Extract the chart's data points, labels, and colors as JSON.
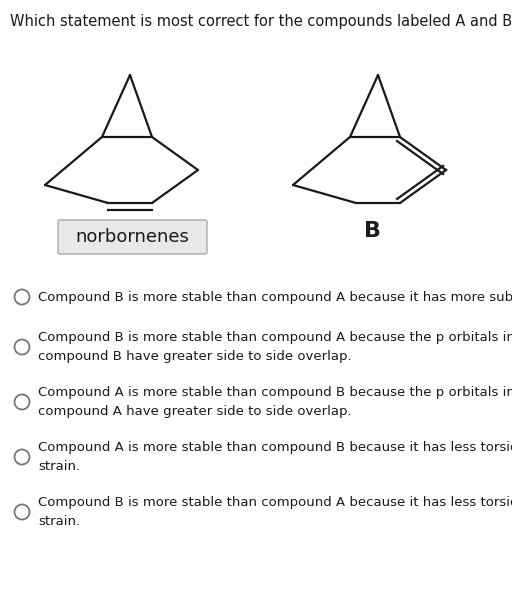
{
  "title": "Which statement is most correct for the compounds labeled A and B?",
  "title_fontsize": 10.5,
  "background_color": "#ffffff",
  "label_B": "B",
  "norbornenes_label": "norbornenes",
  "options": [
    "Compound B is more stable than compound A because it has more substituents.",
    "Compound B is more stable than compound A because the p orbitals in\ncompound B have greater side to side overlap.",
    "Compound A is more stable than compound B because the p orbitals in\ncompound A have greater side to side overlap.",
    "Compound A is more stable than compound B because it has less torsional\nstrain.",
    "Compound B is more stable than compound A because it has less torsional\nstrain."
  ],
  "option_fontsize": 9.5,
  "line_color": "#1a1a1a",
  "text_color": "#1a1a1a",
  "box_facecolor": "#e8e8e8",
  "box_edgecolor": "#aaaaaa"
}
